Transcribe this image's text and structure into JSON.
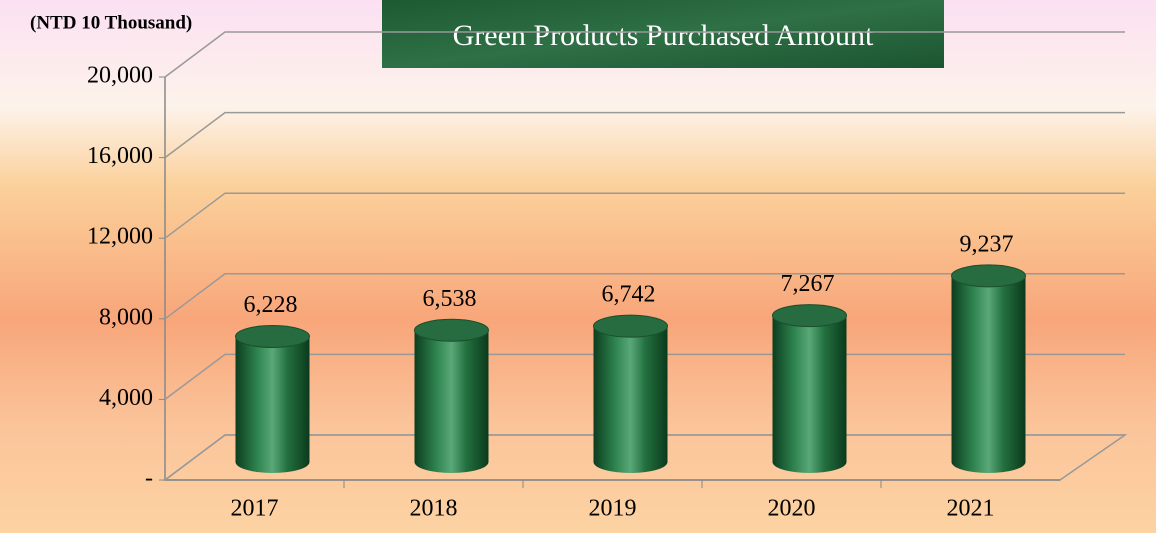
{
  "chart_data": {
    "type": "bar",
    "title": "Green Products Purchased Amount",
    "y_label": "(NTD 10 Thousand)",
    "categories": [
      "2017",
      "2018",
      "2019",
      "2020",
      "2021"
    ],
    "values": [
      6228,
      6538,
      6742,
      7267,
      9237
    ],
    "value_labels": [
      "6,228",
      "6,538",
      "6,742",
      "7,267",
      "9,237"
    ],
    "color": "#1e6b3a",
    "ylim": [
      0,
      20000
    ],
    "yticks": [
      {
        "value": 0,
        "label": "-"
      },
      {
        "value": 4000,
        "label": "4,000"
      },
      {
        "value": 8000,
        "label": "8,000"
      },
      {
        "value": 12000,
        "label": "12,000"
      },
      {
        "value": 16000,
        "label": "16,000"
      },
      {
        "value": 20000,
        "label": "20,000"
      }
    ],
    "grid": true
  }
}
